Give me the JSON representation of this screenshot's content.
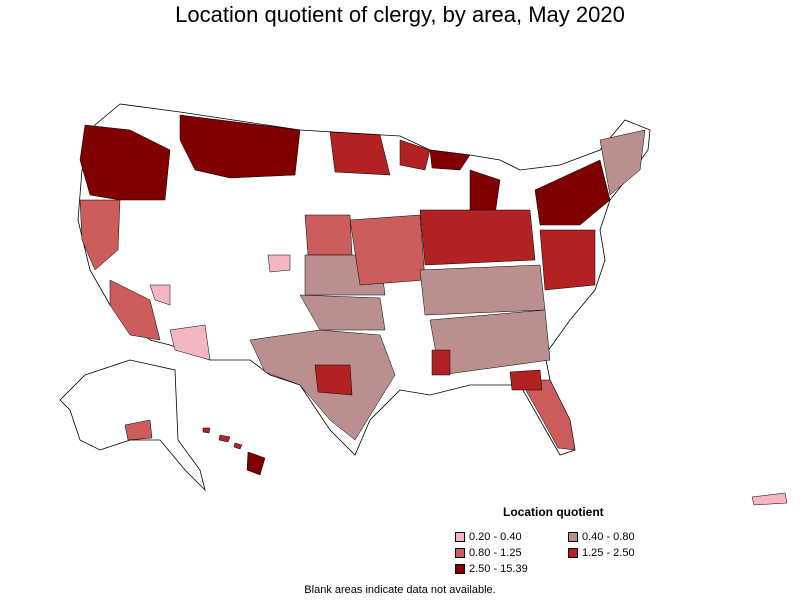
{
  "title": "Location quotient of clergy, by area, May 2020",
  "legend": {
    "title": "Location quotient",
    "items": [
      {
        "label": "0.20 - 0.40",
        "color": "#f4b6c2"
      },
      {
        "label": "0.40 - 0.80",
        "color": "#bc8f8f"
      },
      {
        "label": "0.80 - 1.25",
        "color": "#cd5c5c"
      },
      {
        "label": "1.25 - 2.50",
        "color": "#b22222"
      },
      {
        "label": "2.50 - 15.39",
        "color": "#800000"
      }
    ]
  },
  "footnote": "Blank areas indicate data not available.",
  "colors": {
    "no_data": "#ffffff",
    "border": "#000000"
  }
}
